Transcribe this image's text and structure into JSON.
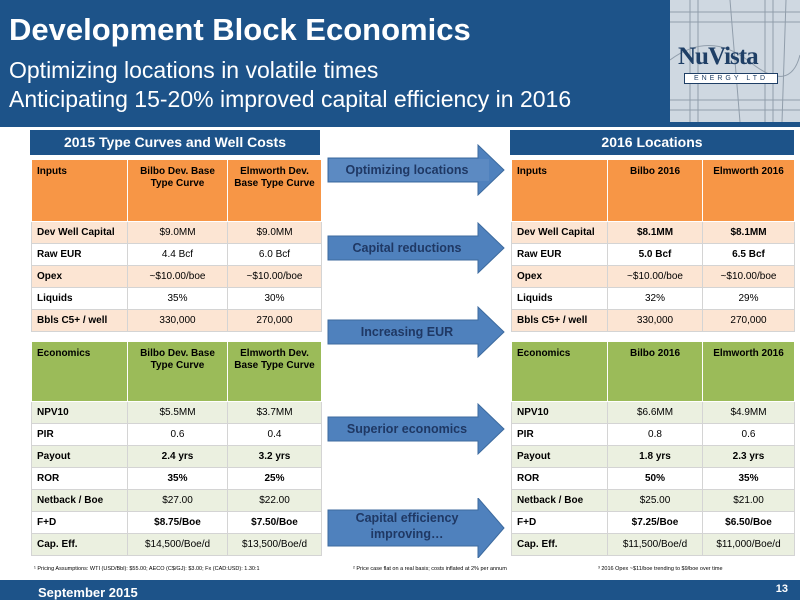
{
  "header": {
    "title": "Development Block Economics",
    "subtitle1": "Optimizing locations in volatile times",
    "subtitle2": "Anticipating 15-20% improved capital efficiency in 2016"
  },
  "logo": {
    "name": "NuVista",
    "tagline": "ENERGY LTD"
  },
  "left_banner": "2015 Type Curves and Well Costs",
  "right_banner": "2016 Locations",
  "left_inputs": {
    "headers": [
      "Inputs",
      "Bilbo Dev. Base Type Curve",
      "Elmworth Dev. Base Type Curve"
    ],
    "rows": [
      [
        "Dev Well Capital",
        "$9.0MM",
        "$9.0MM"
      ],
      [
        "Raw EUR",
        "4.4 Bcf",
        "6.0 Bcf"
      ],
      [
        "Opex",
        "~$10.00/boe",
        "~$10.00/boe"
      ],
      [
        "Liquids",
        "35%",
        "30%"
      ],
      [
        "Bbls C5+ / well",
        "330,000",
        "270,000"
      ]
    ]
  },
  "left_economics": {
    "headers": [
      "Economics",
      "Bilbo Dev. Base Type Curve",
      "Elmworth Dev. Base Type Curve"
    ],
    "rows": [
      [
        "NPV10",
        "$5.5MM",
        "$3.7MM"
      ],
      [
        "PIR",
        "0.6",
        "0.4"
      ],
      [
        "Payout",
        "2.4 yrs",
        "3.2 yrs"
      ],
      [
        "ROR",
        "35%",
        "25%"
      ],
      [
        "Netback / Boe",
        "$27.00",
        "$22.00"
      ],
      [
        "F+D",
        "$8.75/Boe",
        "$7.50/Boe"
      ],
      [
        "Cap. Eff.",
        "$14,500/Boe/d",
        "$13,500/Boe/d"
      ]
    ]
  },
  "right_inputs": {
    "headers": [
      "Inputs",
      "Bilbo 2016",
      "Elmworth 2016"
    ],
    "rows": [
      [
        "Dev Well Capital",
        "$8.1MM",
        "$8.1MM"
      ],
      [
        "Raw EUR",
        "5.0 Bcf",
        "6.5 Bcf"
      ],
      [
        "Opex",
        "~$10.00/boe",
        "~$10.00/boe"
      ],
      [
        "Liquids",
        "32%",
        "29%"
      ],
      [
        "Bbls C5+ / well",
        "330,000",
        "270,000"
      ]
    ]
  },
  "right_economics": {
    "headers": [
      "Economics",
      "Bilbo 2016",
      "Elmworth 2016"
    ],
    "rows": [
      [
        "NPV10",
        "$6.6MM",
        "$4.9MM"
      ],
      [
        "PIR",
        "0.8",
        "0.6"
      ],
      [
        "Payout",
        "1.8 yrs",
        "2.3 yrs"
      ],
      [
        "ROR",
        "50%",
        "35%"
      ],
      [
        "Netback / Boe",
        "$25.00",
        "$21.00"
      ],
      [
        "F+D",
        "$7.25/Boe",
        "$6.50/Boe"
      ],
      [
        "Cap. Eff.",
        "$11,500/Boe/d",
        "$11,000/Boe/d"
      ]
    ]
  },
  "arrows": [
    "Optimizing locations",
    "Capital reductions",
    "Increasing EUR",
    "Superior economics",
    "Capital efficiency improving…"
  ],
  "footnotes": [
    "¹ Pricing Assumptions: WTI (USD/Bbl): $55.00;  AECO (C$/GJ): $3.00; Fx (CAD:USD): 1.30:1",
    "² Price case flat on a real basis; costs inflated at 2% per annum",
    "³ 2016 Opex ~$11/boe trending to $9/boe over time"
  ],
  "footer": {
    "date": "September 2015",
    "page": "13"
  },
  "colors": {
    "navy": "#1d5389",
    "orange": "#f79646",
    "green": "#9bbb59",
    "arrow": "#4f81bd"
  }
}
